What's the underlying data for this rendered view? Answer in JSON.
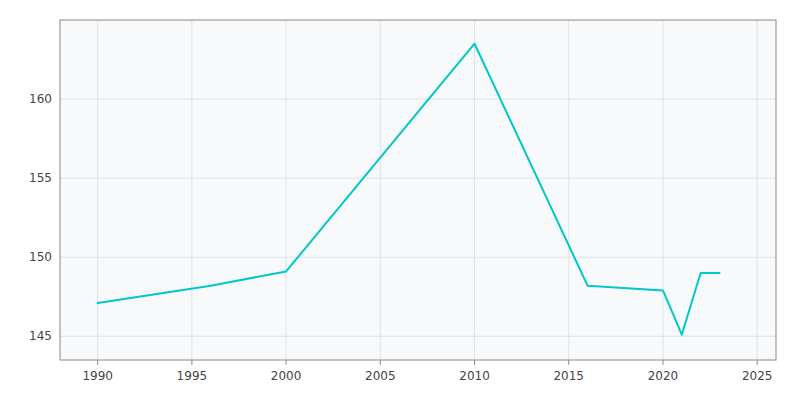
{
  "chart_data": {
    "type": "line",
    "x": [
      1990,
      1996,
      2000,
      2010,
      2016,
      2020,
      2021,
      2022,
      2023
    ],
    "values": [
      147.1,
      148.2,
      149.1,
      163.5,
      148.2,
      147.9,
      145.1,
      149.0,
      149.0
    ],
    "color": "#00c8c8",
    "xlim": [
      1988,
      2026
    ],
    "ylim": [
      143.5,
      165
    ],
    "xticks": [
      1990,
      1995,
      2000,
      2005,
      2010,
      2015,
      2020,
      2025
    ],
    "yticks": [
      145,
      150,
      155,
      160
    ],
    "grid": true
  }
}
